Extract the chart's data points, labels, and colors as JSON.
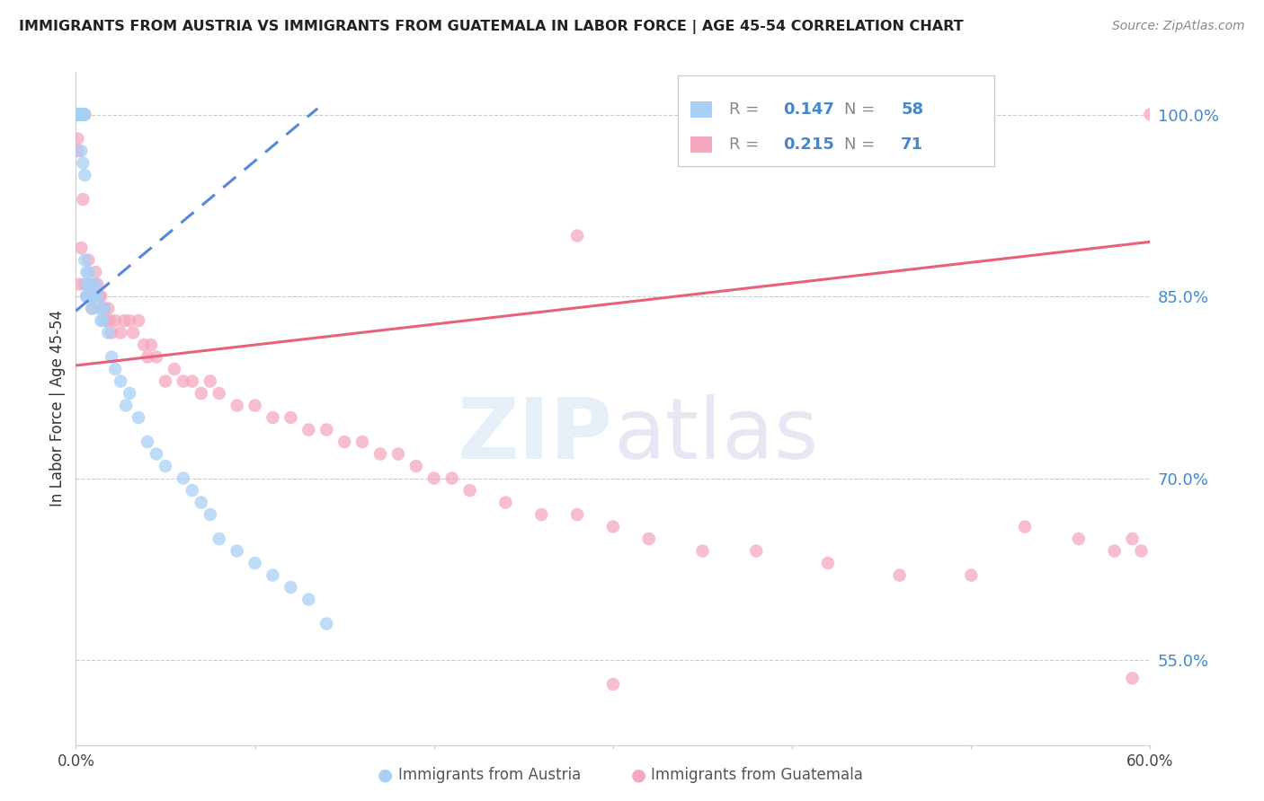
{
  "title": "IMMIGRANTS FROM AUSTRIA VS IMMIGRANTS FROM GUATEMALA IN LABOR FORCE | AGE 45-54 CORRELATION CHART",
  "source": "Source: ZipAtlas.com",
  "ylabel": "In Labor Force | Age 45-54",
  "xlim": [
    0.0,
    0.6
  ],
  "ylim": [
    0.48,
    1.035
  ],
  "right_yticks": [
    0.55,
    0.7,
    0.85,
    1.0
  ],
  "right_yticklabels": [
    "55.0%",
    "70.0%",
    "85.0%",
    "100.0%"
  ],
  "xticks": [
    0.0,
    0.1,
    0.2,
    0.3,
    0.4,
    0.5,
    0.6
  ],
  "xticklabels": [
    "0.0%",
    "",
    "",
    "",
    "",
    "",
    "60.0%"
  ],
  "austria_color": "#a8d0f5",
  "guatemala_color": "#f5a8be",
  "austria_line_color": "#5588dd",
  "guatemala_line_color": "#e8607a",
  "legend_austria_R": "0.147",
  "legend_austria_N": "58",
  "legend_guatemala_R": "0.215",
  "legend_guatemala_N": "71",
  "watermark_zip": "ZIP",
  "watermark_atlas": "atlas",
  "title_color": "#222222",
  "axis_label_color": "#333333",
  "right_axis_color": "#4488cc",
  "austria_x": [
    0.001,
    0.001,
    0.002,
    0.002,
    0.002,
    0.003,
    0.003,
    0.003,
    0.003,
    0.003,
    0.004,
    0.004,
    0.004,
    0.004,
    0.005,
    0.005,
    0.005,
    0.005,
    0.006,
    0.006,
    0.006,
    0.006,
    0.007,
    0.007,
    0.007,
    0.008,
    0.008,
    0.009,
    0.009,
    0.01,
    0.01,
    0.011,
    0.012,
    0.013,
    0.014,
    0.015,
    0.016,
    0.018,
    0.02,
    0.022,
    0.025,
    0.028,
    0.03,
    0.035,
    0.04,
    0.045,
    0.05,
    0.06,
    0.065,
    0.07,
    0.075,
    0.08,
    0.09,
    0.1,
    0.11,
    0.12,
    0.13,
    0.14
  ],
  "austria_y": [
    1.0,
    1.0,
    1.0,
    1.0,
    1.0,
    1.0,
    1.0,
    1.0,
    1.0,
    0.97,
    1.0,
    1.0,
    1.0,
    0.96,
    1.0,
    1.0,
    0.95,
    0.88,
    0.87,
    0.86,
    0.85,
    0.85,
    0.87,
    0.86,
    0.85,
    0.86,
    0.85,
    0.85,
    0.84,
    0.85,
    0.85,
    0.86,
    0.85,
    0.84,
    0.83,
    0.83,
    0.84,
    0.82,
    0.8,
    0.79,
    0.78,
    0.76,
    0.77,
    0.75,
    0.73,
    0.72,
    0.71,
    0.7,
    0.69,
    0.68,
    0.67,
    0.65,
    0.64,
    0.63,
    0.62,
    0.61,
    0.6,
    0.58
  ],
  "guatemala_x": [
    0.001,
    0.002,
    0.003,
    0.004,
    0.005,
    0.006,
    0.007,
    0.008,
    0.009,
    0.01,
    0.011,
    0.012,
    0.013,
    0.014,
    0.015,
    0.016,
    0.017,
    0.018,
    0.019,
    0.02,
    0.022,
    0.025,
    0.027,
    0.03,
    0.032,
    0.035,
    0.038,
    0.04,
    0.042,
    0.045,
    0.05,
    0.055,
    0.06,
    0.065,
    0.07,
    0.075,
    0.08,
    0.09,
    0.1,
    0.11,
    0.12,
    0.13,
    0.14,
    0.15,
    0.16,
    0.17,
    0.18,
    0.19,
    0.2,
    0.21,
    0.22,
    0.24,
    0.26,
    0.28,
    0.3,
    0.32,
    0.35,
    0.38,
    0.42,
    0.46,
    0.5,
    0.53,
    0.56,
    0.58,
    0.59,
    0.595,
    0.6,
    0.28,
    0.3,
    0.59,
    0.001
  ],
  "guatemala_y": [
    0.97,
    0.86,
    0.89,
    0.93,
    0.86,
    0.85,
    0.88,
    0.86,
    0.84,
    0.85,
    0.87,
    0.86,
    0.85,
    0.85,
    0.84,
    0.84,
    0.83,
    0.84,
    0.83,
    0.82,
    0.83,
    0.82,
    0.83,
    0.83,
    0.82,
    0.83,
    0.81,
    0.8,
    0.81,
    0.8,
    0.78,
    0.79,
    0.78,
    0.78,
    0.77,
    0.78,
    0.77,
    0.76,
    0.76,
    0.75,
    0.75,
    0.74,
    0.74,
    0.73,
    0.73,
    0.72,
    0.72,
    0.71,
    0.7,
    0.7,
    0.69,
    0.68,
    0.67,
    0.67,
    0.66,
    0.65,
    0.64,
    0.64,
    0.63,
    0.62,
    0.62,
    0.66,
    0.65,
    0.64,
    0.65,
    0.64,
    1.0,
    0.9,
    0.53,
    0.535,
    0.98
  ],
  "austria_line_x": [
    0.0,
    0.135
  ],
  "austria_line_y": [
    0.838,
    1.005
  ],
  "guatemala_line_x": [
    0.0,
    0.6
  ],
  "guatemala_line_y": [
    0.793,
    0.895
  ]
}
